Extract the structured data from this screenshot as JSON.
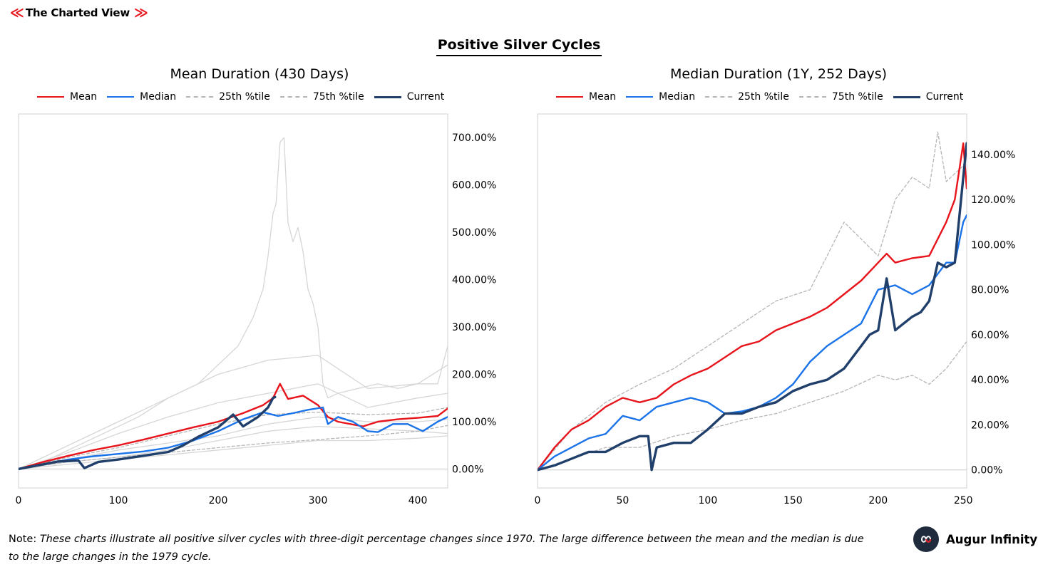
{
  "brand": {
    "name": "The Charted View",
    "chevron_left": "≪",
    "chevron_right": "≫",
    "accent": "#e8141c"
  },
  "main_title": "Positive Silver Cycles",
  "note": {
    "prefix": "Note:",
    "text": "These charts illustrate all positive silver cycles with three-digit percentage changes since 1970. The large difference between the mean and the median is due to the large changes in the 1979 cycle."
  },
  "logo": {
    "name": "Augur Infinity",
    "icon": "infinity-icon"
  },
  "colors": {
    "mean": "#e8141c",
    "median": "#1a73e8",
    "percentile": "#b5b5b5",
    "current": "#203f6b",
    "cycle": "#d6d6d6"
  },
  "chart_data": [
    {
      "type": "line",
      "title": "Mean Duration (430 Days)",
      "xlim": [
        0,
        430
      ],
      "x_ticks": [
        "0",
        "100",
        "200",
        "300",
        "400"
      ],
      "x_tick_values": [
        0,
        100,
        200,
        300,
        400
      ],
      "ylim": [
        -40,
        750
      ],
      "y_ticks": [
        "0.00%",
        "100.00%",
        "200.00%",
        "300.00%",
        "400.00%",
        "500.00%",
        "600.00%",
        "700.00%"
      ],
      "y_tick_values": [
        0,
        100,
        200,
        300,
        400,
        500,
        600,
        700
      ],
      "y_axis_side": "right",
      "legend_placement": "top",
      "legend": [
        "Mean",
        "Median",
        "25th %tile",
        "75th %tile",
        "Current"
      ],
      "series": [
        {
          "name": "Mean",
          "style": "mean",
          "x": [
            0,
            25,
            50,
            75,
            100,
            125,
            150,
            175,
            200,
            225,
            245,
            255,
            262,
            270,
            285,
            300,
            310,
            320,
            345,
            360,
            380,
            400,
            420,
            430
          ],
          "y": [
            0,
            15,
            28,
            40,
            50,
            62,
            75,
            88,
            100,
            118,
            135,
            150,
            180,
            148,
            155,
            135,
            110,
            100,
            90,
            100,
            105,
            108,
            112,
            128
          ]
        },
        {
          "name": "Median",
          "style": "median",
          "x": [
            0,
            25,
            50,
            75,
            100,
            125,
            150,
            175,
            200,
            225,
            245,
            260,
            275,
            290,
            305,
            310,
            320,
            335,
            350,
            360,
            375,
            390,
            405,
            420,
            430
          ],
          "y": [
            0,
            10,
            20,
            27,
            32,
            37,
            45,
            60,
            80,
            105,
            120,
            112,
            118,
            125,
            130,
            95,
            110,
            100,
            80,
            78,
            95,
            95,
            80,
            100,
            110
          ]
        },
        {
          "name": "25th %tile",
          "style": "percentile",
          "x": [
            0,
            50,
            100,
            150,
            200,
            250,
            300,
            350,
            400,
            430
          ],
          "y": [
            0,
            15,
            25,
            35,
            45,
            55,
            62,
            70,
            80,
            92
          ]
        },
        {
          "name": "75th %tile",
          "style": "percentile",
          "x": [
            0,
            50,
            100,
            150,
            200,
            250,
            300,
            350,
            400,
            430
          ],
          "y": [
            0,
            25,
            45,
            70,
            95,
            115,
            120,
            115,
            118,
            130
          ]
        },
        {
          "name": "Current",
          "style": "current",
          "x": [
            0,
            20,
            40,
            60,
            66,
            80,
            100,
            125,
            150,
            165,
            180,
            200,
            215,
            225,
            240,
            250,
            255,
            257
          ],
          "y": [
            0,
            8,
            16,
            18,
            2,
            15,
            20,
            28,
            36,
            50,
            68,
            88,
            115,
            90,
            110,
            130,
            150,
            152
          ]
        }
      ],
      "background_cycles": [
        {
          "x": [
            0,
            30,
            60,
            90,
            120,
            150,
            180,
            200,
            220,
            235,
            245,
            250,
            255,
            258,
            262,
            266,
            270,
            275,
            280,
            285,
            290,
            295,
            300,
            305,
            310,
            320,
            340,
            360,
            380,
            400,
            420,
            430
          ],
          "y": [
            0,
            20,
            50,
            80,
            110,
            150,
            180,
            220,
            260,
            320,
            380,
            450,
            540,
            560,
            690,
            700,
            520,
            480,
            510,
            460,
            380,
            350,
            300,
            180,
            150,
            160,
            170,
            180,
            170,
            180,
            180,
            260
          ]
        },
        {
          "x": [
            0,
            50,
            100,
            150,
            200,
            250,
            300,
            350,
            400,
            430
          ],
          "y": [
            0,
            50,
            100,
            150,
            200,
            230,
            240,
            170,
            180,
            220
          ]
        },
        {
          "x": [
            0,
            50,
            100,
            150,
            200,
            250,
            300,
            350,
            400,
            430
          ],
          "y": [
            0,
            35,
            75,
            110,
            140,
            160,
            180,
            130,
            150,
            160
          ]
        },
        {
          "x": [
            0,
            50,
            100,
            150,
            200,
            250,
            300,
            350,
            400,
            430
          ],
          "y": [
            0,
            20,
            40,
            55,
            70,
            95,
            110,
            100,
            100,
            105
          ]
        },
        {
          "x": [
            0,
            50,
            100,
            150,
            200,
            250,
            300,
            350,
            400,
            430
          ],
          "y": [
            0,
            10,
            20,
            30,
            40,
            50,
            60,
            60,
            65,
            70
          ]
        },
        {
          "x": [
            0,
            50,
            100,
            150,
            200,
            250,
            300,
            350,
            400,
            430
          ],
          "y": [
            0,
            15,
            25,
            40,
            60,
            80,
            90,
            85,
            80,
            75
          ]
        }
      ]
    },
    {
      "type": "line",
      "title": "Median Duration (1Y, 252 Days)",
      "xlim": [
        0,
        252
      ],
      "x_ticks": [
        "0",
        "50",
        "100",
        "150",
        "200",
        "250"
      ],
      "x_tick_values": [
        0,
        50,
        100,
        150,
        200,
        250
      ],
      "ylim": [
        -8,
        158
      ],
      "y_ticks": [
        "0.00%",
        "20.00%",
        "40.00%",
        "60.00%",
        "80.00%",
        "100.00%",
        "120.00%",
        "140.00%"
      ],
      "y_tick_values": [
        0,
        20,
        40,
        60,
        80,
        100,
        120,
        140
      ],
      "y_axis_side": "right",
      "legend_placement": "top",
      "legend": [
        "Mean",
        "Median",
        "25th %tile",
        "75th %tile",
        "Current"
      ],
      "series": [
        {
          "name": "Mean",
          "style": "mean",
          "x": [
            0,
            10,
            20,
            30,
            40,
            50,
            60,
            70,
            80,
            90,
            100,
            110,
            120,
            130,
            140,
            150,
            160,
            170,
            180,
            190,
            200,
            205,
            210,
            220,
            230,
            240,
            245,
            250,
            252
          ],
          "y": [
            0,
            10,
            18,
            22,
            28,
            32,
            30,
            32,
            38,
            42,
            45,
            50,
            55,
            57,
            62,
            65,
            68,
            72,
            78,
            84,
            92,
            96,
            92,
            94,
            95,
            110,
            120,
            145,
            125
          ]
        },
        {
          "name": "Median",
          "style": "median",
          "x": [
            0,
            10,
            20,
            30,
            40,
            50,
            60,
            70,
            80,
            90,
            100,
            110,
            120,
            130,
            140,
            150,
            160,
            170,
            180,
            190,
            200,
            210,
            220,
            230,
            240,
            245,
            250,
            252
          ],
          "y": [
            0,
            6,
            10,
            14,
            16,
            24,
            22,
            28,
            30,
            32,
            30,
            25,
            26,
            28,
            32,
            38,
            48,
            55,
            60,
            65,
            80,
            82,
            78,
            82,
            92,
            92,
            110,
            113
          ]
        },
        {
          "name": "25th %tile",
          "style": "percentile",
          "x": [
            0,
            20,
            40,
            60,
            80,
            100,
            120,
            140,
            160,
            180,
            200,
            210,
            220,
            230,
            240,
            250,
            252
          ],
          "y": [
            0,
            5,
            10,
            10,
            15,
            18,
            22,
            25,
            30,
            35,
            42,
            40,
            42,
            38,
            45,
            55,
            57
          ]
        },
        {
          "name": "75th %tile",
          "style": "percentile",
          "x": [
            0,
            20,
            40,
            60,
            80,
            100,
            120,
            140,
            160,
            180,
            200,
            210,
            220,
            230,
            235,
            240,
            250,
            252
          ],
          "y": [
            0,
            18,
            30,
            38,
            45,
            55,
            65,
            75,
            80,
            110,
            95,
            120,
            130,
            125,
            150,
            128,
            135,
            140
          ]
        },
        {
          "name": "Current",
          "style": "current",
          "x": [
            0,
            10,
            20,
            30,
            40,
            50,
            60,
            65,
            67,
            70,
            80,
            90,
            100,
            110,
            120,
            130,
            140,
            150,
            160,
            170,
            180,
            190,
            195,
            200,
            205,
            210,
            215,
            220,
            225,
            230,
            235,
            240,
            245,
            250,
            252
          ],
          "y": [
            0,
            2,
            5,
            8,
            8,
            12,
            15,
            15,
            0,
            10,
            12,
            12,
            18,
            25,
            25,
            28,
            30,
            35,
            38,
            40,
            45,
            55,
            60,
            62,
            85,
            62,
            65,
            68,
            70,
            75,
            92,
            90,
            92,
            130,
            145
          ]
        }
      ],
      "background_cycles": []
    }
  ]
}
